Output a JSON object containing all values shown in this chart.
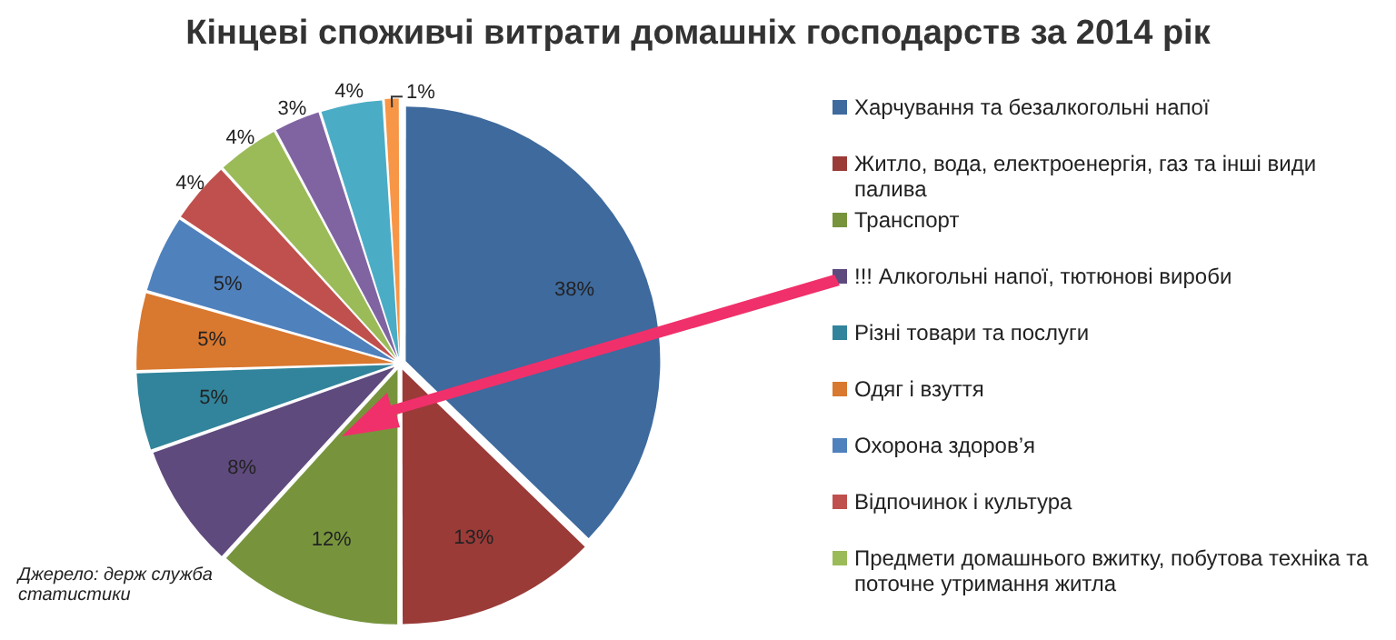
{
  "chart_data": {
    "type": "pie",
    "title": "Кінцеві споживчі витрати домашніх господарств за 2014 рік",
    "categories": [
      "Харчування та безалкогольні напої",
      "Житло, вода, електроенергія, газ та інші види палива",
      "Транспорт",
      "!!! Алкогольні напої, тютюнові вироби",
      "Різні товари та послуги",
      "Одяг і взуття",
      "Охорона здоров’я",
      "Відпочинок і культура",
      "Предмети домашнього вжитку, побутова техніка та поточне утримання житла",
      null,
      null,
      null
    ],
    "values": [
      38,
      13,
      12,
      8,
      5,
      5,
      5,
      4,
      4,
      3,
      4,
      1
    ],
    "colors": [
      "#3e6a9e",
      "#9a3b38",
      "#77943d",
      "#5f4a7e",
      "#31849b",
      "#d9782f",
      "#4f81bd",
      "#c0504d",
      "#9bbb59",
      "#8064a2",
      "#4bacc6",
      "#f79646"
    ],
    "value_labels": [
      "38%",
      "13%",
      "12%",
      "8%",
      "5%",
      "5%",
      "5%",
      "4%",
      "4%",
      "3%",
      "4%",
      "1%"
    ],
    "legend": "right",
    "annotations": [
      "Джерело: держ служба статистики"
    ]
  }
}
